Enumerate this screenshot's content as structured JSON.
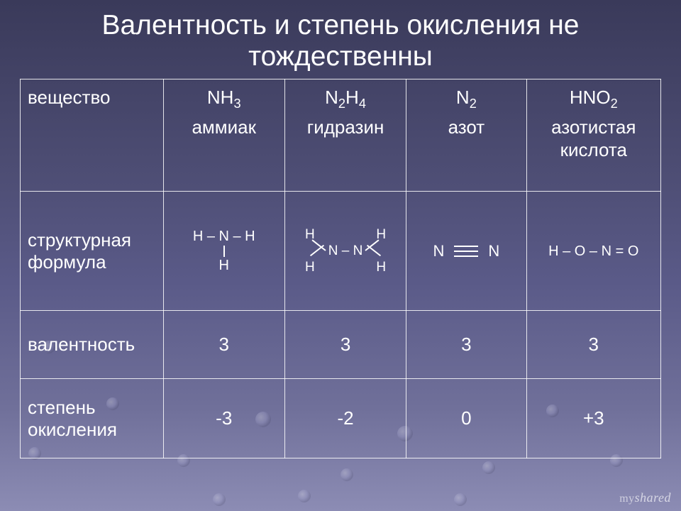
{
  "colors": {
    "text": "#ffffff",
    "border": "#ffffff",
    "bg_gradient_top": "#3a3a5a",
    "bg_gradient_mid": "#5a5a88",
    "bg_gradient_bottom": "#8c8cb4"
  },
  "title": "Валентность и степень окисления не тождественны",
  "rows": {
    "r0_label": "вещество",
    "r1_label": "структурная формула",
    "r2_label": "валентность",
    "r3_label": "степень окисления"
  },
  "substances": [
    {
      "formula_html": "NH<sub>3</sub>",
      "name": "аммиак",
      "valence": "3",
      "oxidation": "-3",
      "structure_type": "nh3",
      "structure_plain": "H – N – H | H"
    },
    {
      "formula_html": "N<sub>2</sub>H<sub>4</sub>",
      "name": "гидразин",
      "valence": "3",
      "oxidation": "-2",
      "structure_type": "hydrazine",
      "structure_plain": "H2N–NH2"
    },
    {
      "formula_html": "N<sub>2</sub>",
      "name": "азот",
      "valence": "3",
      "oxidation": "0",
      "structure_type": "n2",
      "structure_plain": "N≡N"
    },
    {
      "formula_html": "HNO<sub>2</sub>",
      "name": "азотистая кислота",
      "valence": "3",
      "oxidation": "+3",
      "structure_type": "hno2",
      "structure_plain": "H – O – N = O"
    }
  ],
  "watermark": {
    "prefix": "my",
    "brand": "shared"
  },
  "atoms": {
    "H": "H",
    "N": "N",
    "O": "O",
    "NN": "N – N"
  }
}
